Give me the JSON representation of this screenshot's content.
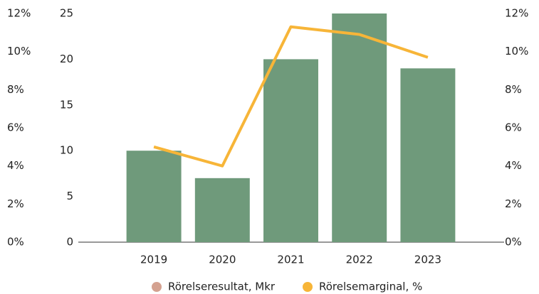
{
  "chart_data": {
    "type": "bar",
    "categories": [
      "2019",
      "2020",
      "2021",
      "2022",
      "2023"
    ],
    "series": [
      {
        "name": "Rörelseresultat, Mkr",
        "color": "#6f9a7b",
        "values": [
          10,
          7,
          20,
          25,
          19
        ],
        "type": "bar"
      },
      {
        "name": "Rörelsemarginal, %",
        "color": "#f7b538",
        "values": [
          5.0,
          4.0,
          11.3,
          10.9,
          9.7
        ],
        "type": "line",
        "axis": "y2",
        "legend_color": "#f7b538"
      }
    ],
    "legend_colors": [
      "#d4a190",
      "#f7b538"
    ],
    "ylim": [
      0,
      25
    ],
    "yticks": [
      0,
      5,
      10,
      15,
      20,
      25
    ],
    "y2lim": [
      0,
      12
    ],
    "y2ticks": [
      {
        "value": 0,
        "label": "0%"
      },
      {
        "value": 2,
        "label": "2%"
      },
      {
        "value": 4,
        "label": "4%"
      },
      {
        "value": 6,
        "label": "6%"
      },
      {
        "value": 8,
        "label": "8%"
      },
      {
        "value": 10,
        "label": "10%"
      },
      {
        "value": 12,
        "label": "12%"
      }
    ],
    "legend_position": "bottom"
  }
}
